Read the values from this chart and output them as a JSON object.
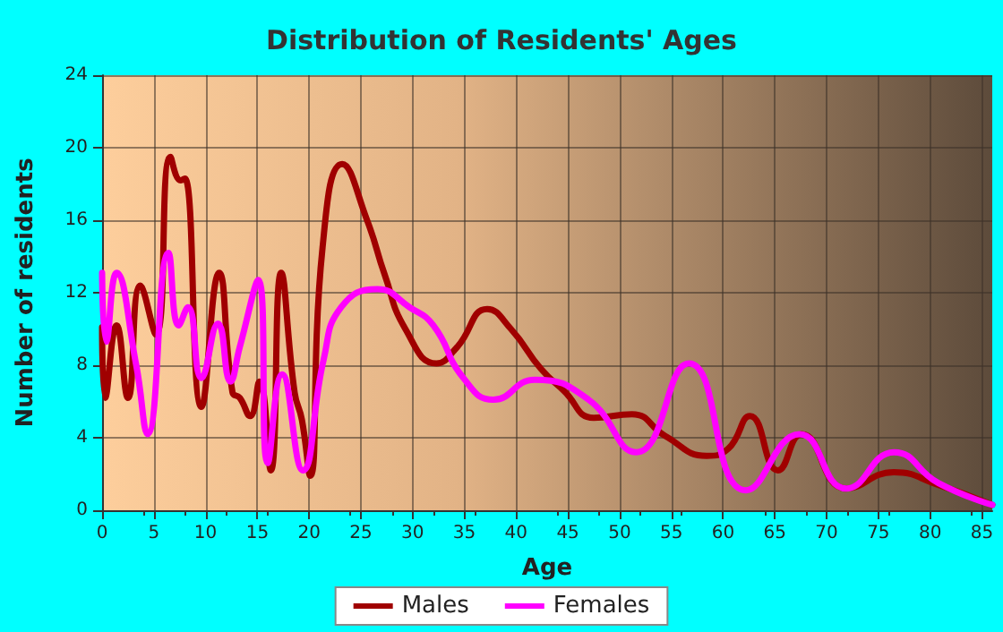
{
  "chart_data": {
    "type": "line",
    "title": "Distribution of Residents' Ages",
    "xlabel": "Age",
    "ylabel": "Number of residents",
    "xlim": [
      0,
      86
    ],
    "xticks": [
      0,
      5,
      10,
      15,
      20,
      25,
      30,
      35,
      40,
      45,
      50,
      55,
      60,
      65,
      70,
      75,
      80,
      85
    ],
    "ylim": [
      0,
      24
    ],
    "yticks": [
      0,
      4,
      8,
      12,
      16,
      20,
      24
    ],
    "grid": true,
    "legend": "bottom",
    "marker": "none",
    "line_style": "solid",
    "series": [
      {
        "name": "Males",
        "color": "#a00000",
        "x": [
          0,
          0.3,
          1.4,
          2.5,
          3.7,
          5.2,
          6.6,
          7.6,
          8,
          9.6,
          11.3,
          12.6,
          13.3,
          14.3,
          15.2,
          16.3,
          17.3,
          18.6,
          19.3,
          20.1,
          21.3,
          23.2,
          25.6,
          27.3,
          29.3,
          32.3,
          34.3,
          37.2,
          39.5,
          42.4,
          44.6,
          47.5,
          51.2,
          54.4,
          58.4,
          60.5,
          62.6,
          65.3,
          67.6,
          71.9,
          76.5,
          80.8,
          86
        ],
        "values": [
          10.1,
          6.2,
          10.2,
          6.2,
          12.4,
          9.7,
          19.5,
          18.2,
          18.3,
          5.7,
          13.1,
          6.5,
          6.2,
          5.2,
          7.1,
          2.2,
          13.1,
          6.5,
          5,
          1.9,
          14.5,
          19.1,
          16,
          13,
          10,
          8.1,
          9,
          11.1,
          10,
          7.8,
          6.6,
          5.1,
          5.3,
          4.1,
          3,
          3.4,
          5.2,
          2.2,
          4.2,
          1.2,
          2.1,
          1.4,
          0.3
        ]
      },
      {
        "name": "Females",
        "color": "#ff00ff",
        "x": [
          0,
          0.4,
          1.4,
          3.3,
          4.4,
          6.4,
          7.4,
          8.3,
          9.6,
          11.2,
          12.4,
          13.3,
          15.1,
          16,
          17.4,
          19.4,
          21.4,
          23.1,
          26.6,
          29.7,
          32,
          34.9,
          37.8,
          41.8,
          47,
          51.6,
          56.7,
          62.2,
          67.4,
          71.9,
          76.5,
          80.8,
          86
        ],
        "values": [
          13.1,
          9.3,
          13.1,
          8,
          4.2,
          14.2,
          10.2,
          11.2,
          7.3,
          10.3,
          7.1,
          9,
          12.7,
          2.6,
          7.5,
          2.2,
          8.3,
          11.2,
          12.2,
          11.2,
          10.2,
          7.3,
          6.1,
          7.2,
          6.1,
          3.2,
          8.1,
          1.1,
          4.2,
          1.2,
          3.2,
          1.5,
          0.3
        ]
      }
    ]
  }
}
